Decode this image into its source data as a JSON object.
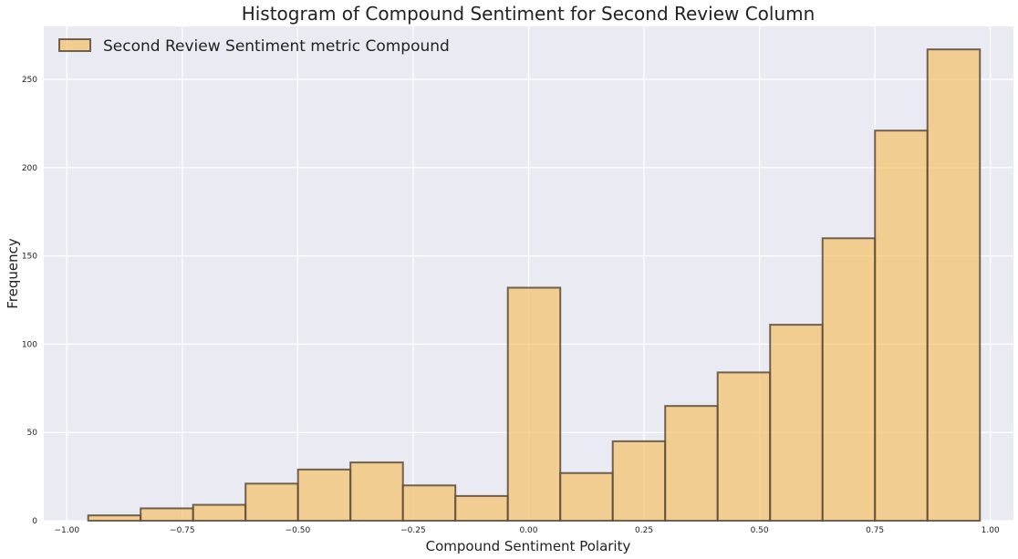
{
  "chart_data": {
    "type": "bar",
    "title": "Histogram of Compound Sentiment for Second Review Column",
    "xlabel": "Compound Sentiment Polarity",
    "ylabel": "Frequency",
    "xlim": [
      -1.05,
      1.05
    ],
    "ylim": [
      0,
      280
    ],
    "xticks": [
      -1.0,
      -0.75,
      -0.5,
      -0.25,
      0.0,
      0.25,
      0.5,
      0.75,
      1.0
    ],
    "xtick_labels": [
      "−1.00",
      "−0.75",
      "−0.50",
      "−0.25",
      "0.00",
      "0.25",
      "0.50",
      "0.75",
      "1.00"
    ],
    "yticks": [
      0,
      50,
      100,
      150,
      200,
      250
    ],
    "ytick_labels": [
      "0",
      "50",
      "100",
      "150",
      "200",
      "250"
    ],
    "grid": true,
    "legend_position": "top-left",
    "colors": {
      "bar_fill": "#f5c26b",
      "bar_edge": "#5a4a3a",
      "plot_background": "#eaeaf2",
      "grid": "#ffffff"
    },
    "series": [
      {
        "name": "Second Review Sentiment metric Compound",
        "bins": [
          {
            "x0": -0.9538,
            "x1": -0.8402,
            "value": 3
          },
          {
            "x0": -0.8402,
            "x1": -0.7266,
            "value": 7
          },
          {
            "x0": -0.7266,
            "x1": -0.613,
            "value": 9
          },
          {
            "x0": -0.613,
            "x1": -0.4994,
            "value": 21
          },
          {
            "x0": -0.4994,
            "x1": -0.3858,
            "value": 29
          },
          {
            "x0": -0.3858,
            "x1": -0.2722,
            "value": 33
          },
          {
            "x0": -0.2722,
            "x1": -0.1586,
            "value": 20
          },
          {
            "x0": -0.1586,
            "x1": -0.045,
            "value": 14
          },
          {
            "x0": -0.045,
            "x1": 0.0686,
            "value": 132
          },
          {
            "x0": 0.0686,
            "x1": 0.1822,
            "value": 27
          },
          {
            "x0": 0.1822,
            "x1": 0.2958,
            "value": 45
          },
          {
            "x0": 0.2958,
            "x1": 0.4094,
            "value": 65
          },
          {
            "x0": 0.4094,
            "x1": 0.523,
            "value": 84
          },
          {
            "x0": 0.523,
            "x1": 0.6366,
            "value": 111
          },
          {
            "x0": 0.6366,
            "x1": 0.7502,
            "value": 160
          },
          {
            "x0": 0.7502,
            "x1": 0.8638,
            "value": 221
          },
          {
            "x0": 0.8638,
            "x1": 0.9774,
            "value": 267
          }
        ]
      }
    ]
  }
}
